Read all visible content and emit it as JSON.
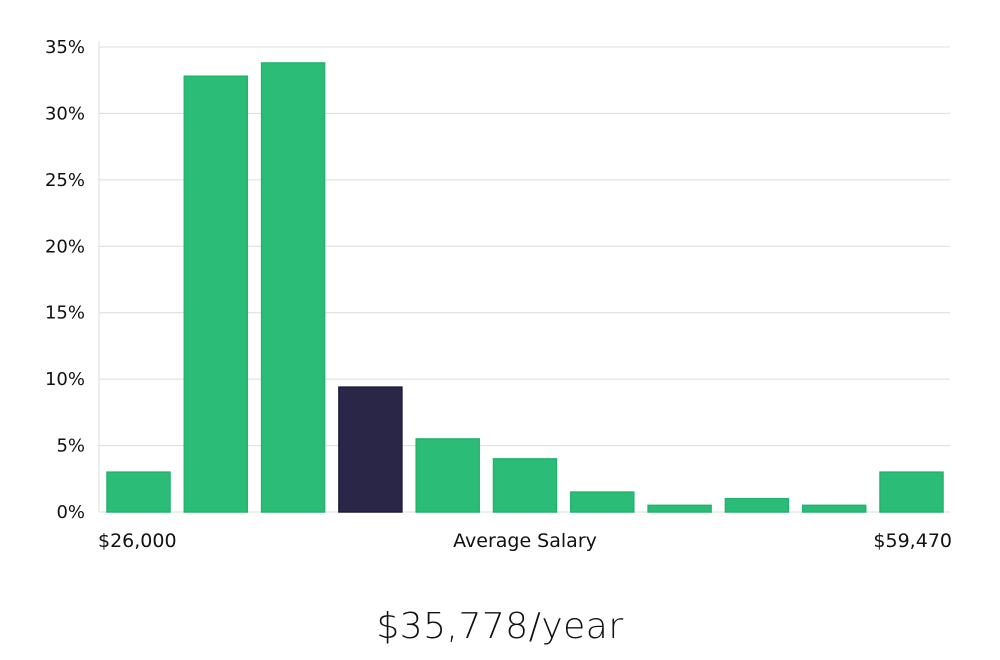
{
  "chart_data": {
    "type": "bar",
    "title": "",
    "xlabel": "Average Salary",
    "ylabel": "",
    "x_range_labels": {
      "min": "$26,000",
      "max": "$59,470"
    },
    "y_tick_labels": [
      "0%",
      "5%",
      "10%",
      "15%",
      "20%",
      "25%",
      "30%",
      "35%"
    ],
    "ylim": [
      0,
      35
    ],
    "values": [
      3,
      32.8,
      33.8,
      9.4,
      5.5,
      4.0,
      1.5,
      0.5,
      1.0,
      0.5,
      3.0
    ],
    "highlight_index": 3,
    "colors": {
      "bar": "#2bbd77",
      "bar_stroke": "#22b36d",
      "highlight": "#2a2647",
      "grid": "#dcdcdc"
    }
  },
  "summary": {
    "salary_text": "$35,778/year"
  }
}
